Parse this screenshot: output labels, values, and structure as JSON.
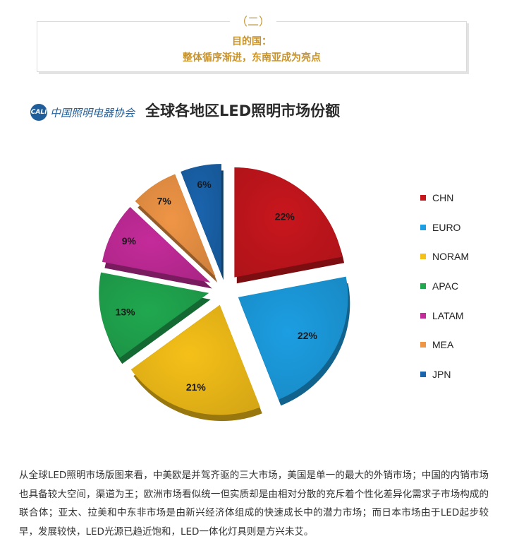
{
  "header": {
    "section_number": "（二）",
    "line1": "目的国：",
    "line2": "整体循序渐进，东南亚成为亮点"
  },
  "logo": {
    "mark": "CALi",
    "text": "中国照明电器协会"
  },
  "chart_data": {
    "type": "pie",
    "title": "全球各地区LED照明市场份额",
    "categories": [
      "CHN",
      "EURO",
      "NORAM",
      "APAC",
      "LATAM",
      "MEA",
      "JPN"
    ],
    "values": [
      22,
      22,
      21,
      13,
      9,
      7,
      6
    ],
    "value_labels": [
      "22%",
      "22%",
      "21%",
      "13%",
      "9%",
      "7%",
      "6%"
    ],
    "colors": [
      "#c8161d",
      "#1c9ee2",
      "#f5c018",
      "#20a84f",
      "#c42b9a",
      "#ef9546",
      "#1a64ad"
    ],
    "exploded": true,
    "legend_position": "right"
  },
  "paragraph": "从全球LED照明市场版图来看，中美欧是并驾齐驱的三大市场，美国是单一的最大的外销市场；中国的内销市场也具备较大空间，渠道为王；欧洲市场看似统一但实质却是由相对分散的充斥着个性化差异化需求子市场构成的联合体；亚太、拉美和中东非市场是由新兴经济体组成的快速成长中的潜力市场；而日本市场由于LED起步较早，发展较快，LED光源已趋近饱和，LED一体化灯具则是方兴未艾。"
}
